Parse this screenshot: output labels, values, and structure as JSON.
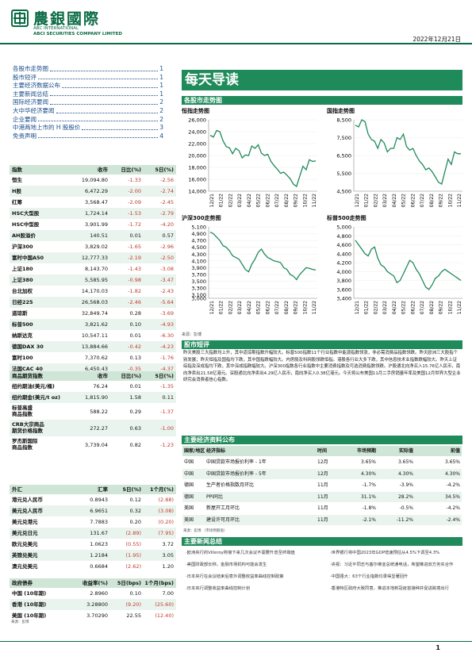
{
  "header": {
    "brand_cn": "農銀國際",
    "brand_en1": "ABC INTERNATIONAL",
    "brand_en2": "ABCI SECURITIES COMPANY LIMITED",
    "date": "2022年12月21日",
    "colors": {
      "accent": "#0a6b45",
      "bar": "#1f8a5a",
      "red": "#c0392b"
    }
  },
  "toc": [
    {
      "label": "各股市走势图",
      "page": "1"
    },
    {
      "label": "股市短评",
      "page": "1"
    },
    {
      "label": "主要经济数据公布",
      "page": "1"
    },
    {
      "label": "主要新闻总结",
      "page": "1"
    },
    {
      "label": "国际经济要闻",
      "page": "2"
    },
    {
      "label": "大中华经济要闻",
      "page": "2"
    },
    {
      "label": "企业要闻",
      "page": "2"
    },
    {
      "label": "中港两地上市的 H 股股价",
      "page": "3"
    },
    {
      "label": "免责声明",
      "page": "4"
    }
  ],
  "banner_title": "每天导读",
  "charts_section": "各股市走势图",
  "charts": [
    {
      "title": "恒指走势图",
      "type": "line",
      "yticks": [
        "26,000",
        "24,000",
        "22,000",
        "20,000",
        "18,000",
        "16,000",
        "14,000"
      ],
      "ylim": [
        14000,
        26000
      ],
      "values": [
        23400,
        23100,
        24200,
        24000,
        22500,
        21500,
        21300,
        20300,
        21200,
        20800,
        19600,
        20100,
        20000,
        21600,
        21200,
        21800,
        20400,
        20000,
        20200,
        19000,
        18300,
        17700,
        17000,
        17200,
        16700,
        16100,
        15200,
        14800,
        16500,
        18200,
        17600,
        19300,
        19000,
        19100
      ]
    },
    {
      "title": "国指走势图",
      "type": "line",
      "yticks": [
        "8,500",
        "7,500",
        "6,500",
        "5,500",
        "4,500"
      ],
      "ylim": [
        4500,
        8500
      ],
      "values": [
        8200,
        8100,
        8500,
        8400,
        7700,
        7400,
        7300,
        6900,
        7400,
        7200,
        6700,
        6900,
        6900,
        7500,
        7400,
        7700,
        7000,
        6800,
        6900,
        6500,
        6200,
        6000,
        5700,
        5800,
        5600,
        5300,
        5000,
        4900,
        5600,
        6300,
        6000,
        6700,
        6600,
        6600
      ]
    },
    {
      "title": "沪深300走势图",
      "type": "line",
      "yticks": [
        "5,100",
        "4,900",
        "4,700",
        "4,500",
        "4,300",
        "4,100",
        "3,900",
        "3,700",
        "3,500",
        "3,300",
        "3,100",
        "3,000"
      ],
      "ylim": [
        3000,
        5100
      ],
      "values": [
        4950,
        4900,
        4800,
        4700,
        4550,
        4500,
        4400,
        4250,
        4200,
        4150,
        4000,
        3850,
        3780,
        4000,
        4150,
        4350,
        4450,
        4300,
        4200,
        4150,
        4100,
        4080,
        4050,
        3900,
        3850,
        3700,
        3650,
        3550,
        3700,
        3800,
        3900,
        3880,
        3850,
        3830
      ]
    },
    {
      "title": "标普500走势图",
      "type": "line",
      "yticks": [
        "5,000",
        "4,800",
        "4,600",
        "4,400",
        "4,200",
        "4,000",
        "3,800",
        "3,600",
        "3,400"
      ],
      "ylim": [
        3400,
        5000
      ],
      "values": [
        4700,
        4600,
        4500,
        4400,
        4350,
        4500,
        4550,
        4300,
        4150,
        4100,
        4000,
        3950,
        3900,
        3750,
        3800,
        3950,
        4100,
        4250,
        4200,
        4050,
        3950,
        3800,
        3650,
        3600,
        3700,
        3850,
        3900,
        4000,
        4050,
        4000,
        3950,
        3900,
        3850,
        3800
      ]
    }
  ],
  "chart_xticks": [
    "12/21",
    "01/22",
    "02/22",
    "03/22",
    "04/22",
    "05/22",
    "06/22",
    "07/22",
    "08/22",
    "09/22",
    "10/22",
    "11/22"
  ],
  "chart_source": "来源：彭博",
  "indices_table": {
    "headers": [
      "指数",
      "收市",
      "日比(%)",
      "5日(%)"
    ],
    "rows": [
      [
        "恒生",
        "19,094.80",
        "-1.33",
        "-2.56"
      ],
      [
        "H股",
        "6,472.29",
        "-2.00",
        "-2.74"
      ],
      [
        "红筹",
        "3,568.47",
        "-2.09",
        "-2.45"
      ],
      [
        "HSC大型股",
        "1,724.14",
        "-1.53",
        "-2.79"
      ],
      [
        "HSC中型股",
        "3,901.99",
        "-1.72",
        "-4.20"
      ],
      [
        "AH股溢价",
        "140.51",
        "0.01",
        "0.57"
      ],
      [
        "沪深300",
        "3,829.02",
        "-1.65",
        "-2.96"
      ],
      [
        "富时中国A50",
        "12,777.33",
        "-2.19",
        "-2.50"
      ],
      [
        "上证180",
        "8,143.70",
        "-1.43",
        "-3.08"
      ],
      [
        "上证380",
        "5,585.95",
        "-0.98",
        "-3.47"
      ],
      [
        "台北加权",
        "14,170.03",
        "-1.82",
        "-2.43"
      ],
      [
        "日经225",
        "26,568.03",
        "-2.46",
        "-5.64"
      ],
      [
        "道琼斯",
        "32,849.74",
        "0.28",
        "-3.69"
      ],
      [
        "标普500",
        "3,821.62",
        "0.10",
        "-4.93"
      ],
      [
        "纳斯达克",
        "10,547.11",
        "0.01",
        "-6.30"
      ],
      [
        "德国DAX 30",
        "13,884.66",
        "-0.42",
        "-4.23"
      ],
      [
        "富时100",
        "7,370.62",
        "0.13",
        "-1.76"
      ],
      [
        "法国CAC 40",
        "6,450.43",
        "-0.35",
        "-4.37"
      ]
    ]
  },
  "commodity_table": {
    "headers": [
      "商品期货指数",
      "收市",
      "日比(%)",
      "5日(%)"
    ],
    "rows": [
      [
        "纽约期油(美元/桶)",
        "76.24",
        "0.01",
        "-1.35"
      ],
      [
        "纽约期金(美元/t oz)",
        "1,815.90",
        "1.58",
        "0.11"
      ],
      [
        "标普高盛\n商品指数",
        "588.22",
        "0.29",
        "-1.37"
      ],
      [
        "CRB大宗商品\n期货价格指数",
        "272.27",
        "0.63",
        "-1.00"
      ],
      [
        "罗杰斯国际\n商品指数",
        "3,739.04",
        "0.82",
        "-1.23"
      ]
    ]
  },
  "fx_table": {
    "headers": [
      "外汇",
      "汇率",
      "5日(%)",
      "1个月(%)"
    ],
    "rows": [
      [
        "港元兑人民币",
        "0.8943",
        "0.12",
        "(2.88)"
      ],
      [
        "美元兑人民币",
        "6.9651",
        "0.32",
        "(3.08)"
      ],
      [
        "美元兑港元",
        "7.7883",
        "0.20",
        "(0.20)"
      ],
      [
        "美元兑日元",
        "131.67",
        "(2.89)",
        "(7.95)"
      ],
      [
        "欧元兑美元",
        "1.0623",
        "(0.55)",
        "3.72"
      ],
      [
        "英镑兑美元",
        "1.2184",
        "(1.95)",
        "3.05"
      ],
      [
        "澳元兑美元",
        "0.6684",
        "(2.62)",
        "1.20"
      ]
    ]
  },
  "bond_table": {
    "headers": [
      "政府债券",
      "收益率(%)",
      "5日(bps)",
      "1个月(bps)"
    ],
    "rows": [
      [
        "中国 (10年期)",
        "2.8960",
        "0.10",
        "7.00"
      ],
      [
        "香港 (10年期)",
        "3.28800",
        "(9.20)",
        "(25.60)"
      ],
      [
        "美国 (10年期)",
        "3.70290",
        "22.55",
        "(12.40)"
      ]
    ],
    "source": "来源：彭博"
  },
  "market_comment": {
    "title": "股市短评",
    "text": "昨天美股三大指数均上升，其中道琼斯指数升幅较大。标普500指数11个行业指数中能源指数领涨，非必需消费品指数领跌。昨天欧洲三大股指个别发展；昨天恒指及国指均下跌，其中国指跌幅较大。内房股及科网股领跌恒指。港股各行业大多下跌，其中信息技术业指数跌幅较大。昨天上证综指及深成指均下跌，其中深成指跌幅较大。沪深300指数各行业指数中主要消费指数及可选消费指数领跌。沪股通北向净买入15.76亿人民币，南向净卖出21.58亿港元。深股通北向净卖出4.29亿人民币，南向净买入0.38亿港元。今天将公布美国11月二手房销量年率及美国12月世界大型企业研究会消费者信心指数。"
  },
  "eco_section": {
    "title": "主要经济资料公布",
    "headers": [
      "国家/地区",
      "经济指标",
      "时间",
      "市场预期",
      "实际值",
      "前值"
    ],
    "rows": [
      [
        "中国",
        "中国贷款市场报价利率 - 1年",
        "12月",
        "3.65%",
        "3.65%",
        "3.65%"
      ],
      [
        "中国",
        "中国贷款市场报价利率 - 5年",
        "12月",
        "4.30%",
        "4.30%",
        "4.30%"
      ],
      [
        "德国",
        "生产者价格指数月环比",
        "11月",
        "-1.7%",
        "-3.9%",
        "-4.2%"
      ],
      [
        "德国",
        "PPI同比",
        "11月",
        "31.1%",
        "28.2%",
        "34.5%"
      ],
      [
        "美国",
        "新屋开工月环比",
        "11月",
        "-1.8%",
        "-0.5%",
        "-4.2%"
      ],
      [
        "美国",
        "建设许可月环比",
        "11月",
        "-2.1%",
        "-11.2%",
        "-2.4%"
      ]
    ],
    "source": "来源：彭博 （市场预期值）"
  },
  "news_section": {
    "title": "主要新闻总结",
    "left": [
      "·欧洲央行的Villeroy称接下来几次会议不需要升息至终端值",
      "·美国财政部长称，金融市场机构可能会发生",
      "·日本央行在会议结束后意外调整收益率曲线控制政策",
      "·日本央行调整收益率曲线控制计划"
    ],
    "right": [
      "·世界银行将中国2023年GDP增速预估从4.5%下调至4.3%",
      "·央视：习近平同志与塞尔维亚总统通电话，希望推进双方务实合作",
      "·中国强大：63个行业指数均录得显著回升",
      "·香港特区政府大致同意，推进本地新冠疫苗接种并促进跨境出行"
    ]
  },
  "page_number": "1"
}
